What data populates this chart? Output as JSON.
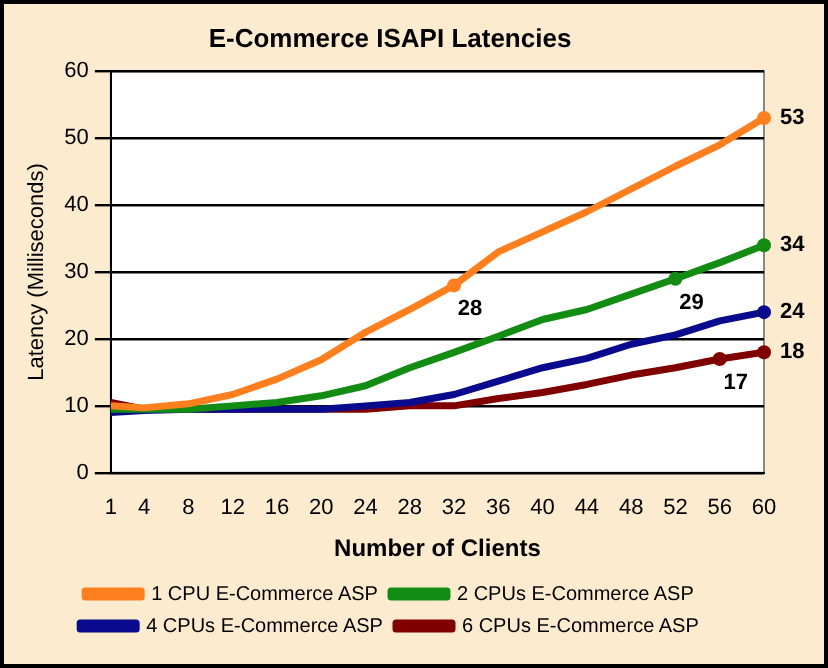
{
  "chart_data": {
    "type": "line",
    "title": "E-Commerce ISAPI Latencies",
    "xlabel": "Number of Clients",
    "ylabel": "Latency (Milliseconds)",
    "x": [
      1,
      4,
      8,
      12,
      16,
      20,
      24,
      28,
      32,
      36,
      40,
      44,
      48,
      52,
      56,
      60
    ],
    "series": [
      {
        "name": "1 CPU E-Commerce ASP",
        "color": "#ff7f1e",
        "values": [
          10,
          9.7,
          10.3,
          11.7,
          14,
          16.9,
          21,
          24.4,
          28,
          33,
          36,
          39,
          42.4,
          45.8,
          49,
          53
        ],
        "value_labels": [
          null,
          null,
          null,
          null,
          null,
          null,
          null,
          null,
          "28",
          null,
          null,
          null,
          null,
          null,
          null,
          "53"
        ]
      },
      {
        "name": "2 CPUs E-Commerce ASP",
        "color": "#128c12",
        "values": [
          9.5,
          9.5,
          9.5,
          10,
          10.5,
          11.5,
          13,
          15.7,
          18,
          20.4,
          22.9,
          24.4,
          26.7,
          29,
          31.4,
          34
        ],
        "value_labels": [
          null,
          null,
          null,
          null,
          null,
          null,
          null,
          null,
          null,
          null,
          null,
          null,
          null,
          "29",
          null,
          "34"
        ]
      },
      {
        "name": "4 CPUs E-Commerce ASP",
        "color": "#0a0a8c",
        "values": [
          9,
          9.3,
          9.5,
          9.5,
          9.5,
          9.5,
          10,
          10.5,
          11.7,
          13.7,
          15.7,
          17.1,
          19.2,
          20.6,
          22.7,
          24
        ],
        "value_labels": [
          null,
          null,
          null,
          null,
          null,
          null,
          null,
          null,
          null,
          null,
          null,
          null,
          null,
          null,
          null,
          "24"
        ]
      },
      {
        "name": "6 CPUs E-Commerce ASP",
        "color": "#800000",
        "values": [
          10.5,
          9.5,
          9.5,
          9.5,
          9.5,
          9.5,
          9.5,
          10,
          10,
          11.1,
          12,
          13.2,
          14.6,
          15.7,
          17,
          18
        ],
        "value_labels": [
          null,
          null,
          null,
          null,
          null,
          null,
          null,
          null,
          null,
          null,
          null,
          null,
          null,
          null,
          "17",
          "18"
        ]
      }
    ],
    "xlim": [
      1,
      60
    ],
    "xticks": [
      1,
      4,
      8,
      12,
      16,
      20,
      24,
      28,
      32,
      36,
      40,
      44,
      48,
      52,
      56,
      60
    ],
    "ylim": [
      0,
      60
    ],
    "yticks": [
      0,
      10,
      20,
      30,
      40,
      50,
      60
    ],
    "grid": "y",
    "legend": "bottom",
    "line_style": "solid"
  }
}
